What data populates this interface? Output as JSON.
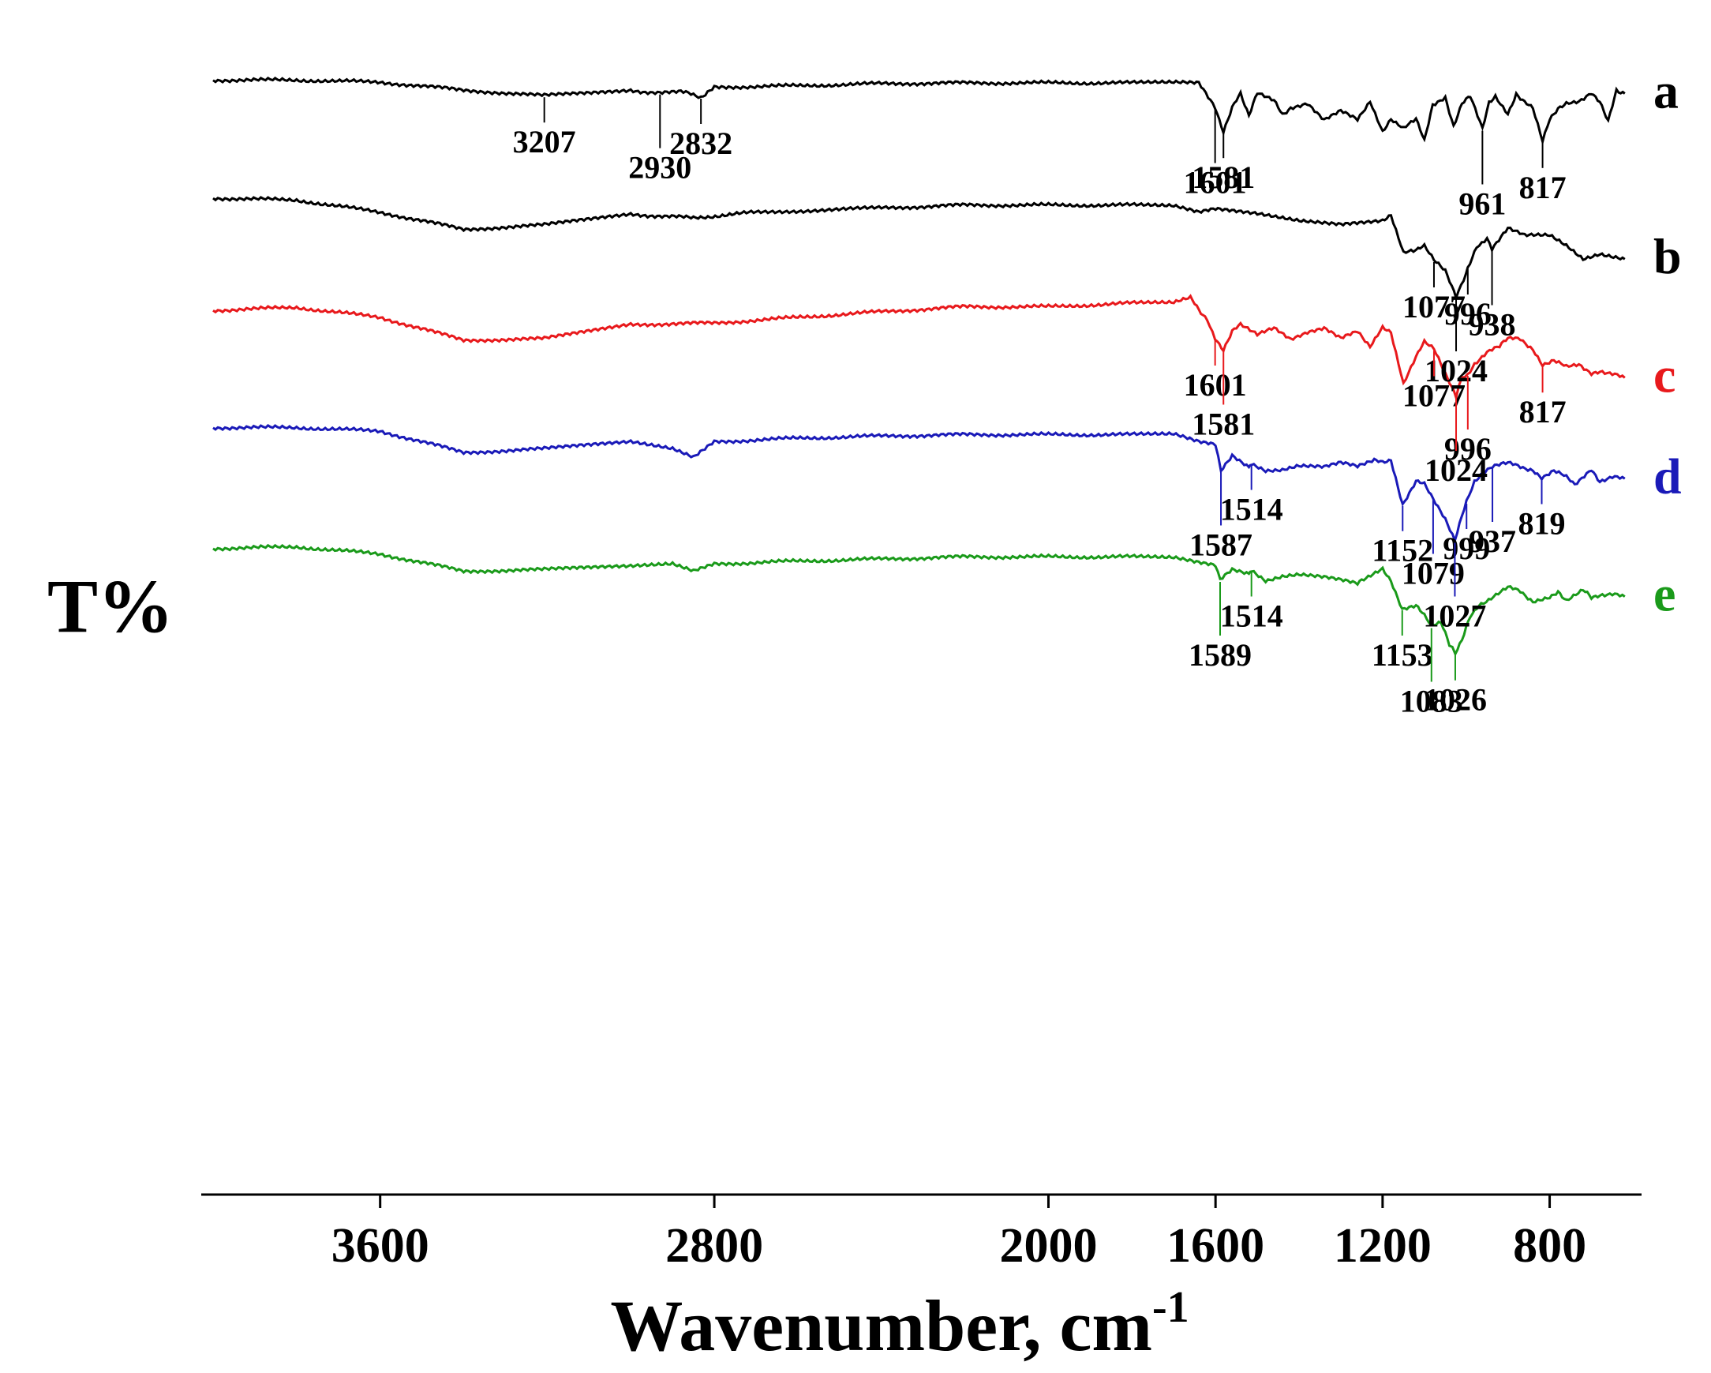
{
  "chart_data": {
    "type": "line",
    "title": "",
    "xlabel": "Wavenumber, cm",
    "xlabel_superscript": "-1",
    "ylabel": "T%",
    "xlim": [
      4000,
      580
    ],
    "x_reversed": true,
    "x_ticks": [
      3600,
      2800,
      2000,
      1600,
      1200,
      800
    ],
    "x_tick_labels": [
      "3600",
      "2800",
      "2000",
      "1600",
      "1200",
      "800"
    ],
    "grid": false,
    "legend": "curve letters at right end of each trace",
    "colors": {
      "a": "#000000",
      "b": "#000000",
      "c": "#e8191c",
      "d": "#1a1ab8",
      "e": "#1a9a1a",
      "axis": "#000000"
    },
    "series": [
      {
        "name": "a",
        "color": "#000000",
        "baseline": 0.08,
        "points": [
          [
            4000,
            0.06
          ],
          [
            3800,
            0.06
          ],
          [
            3600,
            0.09
          ],
          [
            3400,
            0.2
          ],
          [
            3207,
            0.28
          ],
          [
            3100,
            0.24
          ],
          [
            3000,
            0.21
          ],
          [
            2930,
            0.24
          ],
          [
            2880,
            0.22
          ],
          [
            2832,
            0.3
          ],
          [
            2800,
            0.16
          ],
          [
            2600,
            0.14
          ],
          [
            2400,
            0.11
          ],
          [
            2200,
            0.1
          ],
          [
            2000,
            0.1
          ],
          [
            1800,
            0.1
          ],
          [
            1700,
            0.1
          ],
          [
            1640,
            0.1
          ],
          [
            1601,
            0.45
          ],
          [
            1581,
            0.78
          ],
          [
            1560,
            0.45
          ],
          [
            1540,
            0.25
          ],
          [
            1520,
            0.55
          ],
          [
            1500,
            0.25
          ],
          [
            1460,
            0.35
          ],
          [
            1440,
            0.55
          ],
          [
            1420,
            0.45
          ],
          [
            1380,
            0.38
          ],
          [
            1340,
            0.62
          ],
          [
            1300,
            0.5
          ],
          [
            1260,
            0.62
          ],
          [
            1230,
            0.35
          ],
          [
            1200,
            0.8
          ],
          [
            1180,
            0.6
          ],
          [
            1150,
            0.75
          ],
          [
            1120,
            0.6
          ],
          [
            1100,
            0.92
          ],
          [
            1080,
            0.4
          ],
          [
            1050,
            0.32
          ],
          [
            1030,
            0.7
          ],
          [
            1010,
            0.4
          ],
          [
            990,
            0.28
          ],
          [
            961,
            0.75
          ],
          [
            945,
            0.38
          ],
          [
            930,
            0.28
          ],
          [
            900,
            0.55
          ],
          [
            880,
            0.25
          ],
          [
            860,
            0.38
          ],
          [
            840,
            0.45
          ],
          [
            817,
            0.92
          ],
          [
            800,
            0.62
          ],
          [
            780,
            0.45
          ],
          [
            760,
            0.4
          ],
          [
            730,
            0.35
          ],
          [
            700,
            0.25
          ],
          [
            680,
            0.35
          ],
          [
            660,
            0.65
          ],
          [
            640,
            0.2
          ],
          [
            620,
            0.25
          ]
        ]
      },
      {
        "name": "b",
        "color": "#000000",
        "baseline": 0.42,
        "points": [
          [
            4000,
            0.02
          ],
          [
            3800,
            0.05
          ],
          [
            3600,
            0.22
          ],
          [
            3400,
            0.46
          ],
          [
            3207,
            0.4
          ],
          [
            3000,
            0.25
          ],
          [
            2850,
            0.3
          ],
          [
            2700,
            0.22
          ],
          [
            2400,
            0.16
          ],
          [
            2200,
            0.12
          ],
          [
            2000,
            0.12
          ],
          [
            1800,
            0.12
          ],
          [
            1700,
            0.14
          ],
          [
            1640,
            0.22
          ],
          [
            1600,
            0.18
          ],
          [
            1500,
            0.25
          ],
          [
            1400,
            0.35
          ],
          [
            1300,
            0.4
          ],
          [
            1200,
            0.35
          ],
          [
            1180,
            0.25
          ],
          [
            1150,
            0.8
          ],
          [
            1120,
            0.75
          ],
          [
            1100,
            0.7
          ],
          [
            1077,
            0.9
          ],
          [
            1050,
            1.05
          ],
          [
            1024,
            1.4
          ],
          [
            1000,
            1.1
          ],
          [
            996,
            1.0
          ],
          [
            975,
            0.7
          ],
          [
            950,
            0.6
          ],
          [
            938,
            0.75
          ],
          [
            900,
            0.45
          ],
          [
            860,
            0.55
          ],
          [
            800,
            0.55
          ],
          [
            760,
            0.7
          ],
          [
            720,
            0.88
          ],
          [
            680,
            0.8
          ],
          [
            620,
            0.88
          ]
        ]
      },
      {
        "name": "c",
        "color": "#e8191c",
        "baseline": 0.74,
        "points": [
          [
            4000,
            0.0
          ],
          [
            3800,
            -0.04
          ],
          [
            3600,
            0.1
          ],
          [
            3400,
            0.42
          ],
          [
            3207,
            0.4
          ],
          [
            3000,
            0.2
          ],
          [
            2800,
            0.18
          ],
          [
            2600,
            0.1
          ],
          [
            2400,
            0.02
          ],
          [
            2200,
            -0.05
          ],
          [
            2000,
            -0.05
          ],
          [
            1800,
            -0.1
          ],
          [
            1700,
            -0.1
          ],
          [
            1660,
            -0.18
          ],
          [
            1640,
            0.0
          ],
          [
            1620,
            0.12
          ],
          [
            1601,
            0.4
          ],
          [
            1581,
            0.55
          ],
          [
            1560,
            0.3
          ],
          [
            1540,
            0.2
          ],
          [
            1500,
            0.35
          ],
          [
            1460,
            0.25
          ],
          [
            1420,
            0.4
          ],
          [
            1380,
            0.3
          ],
          [
            1340,
            0.25
          ],
          [
            1300,
            0.4
          ],
          [
            1260,
            0.3
          ],
          [
            1230,
            0.5
          ],
          [
            1200,
            0.25
          ],
          [
            1180,
            0.3
          ],
          [
            1150,
            1.05
          ],
          [
            1120,
            0.65
          ],
          [
            1100,
            0.45
          ],
          [
            1077,
            0.55
          ],
          [
            1050,
            0.9
          ],
          [
            1024,
            1.2
          ],
          [
            1010,
            0.95
          ],
          [
            996,
            0.9
          ],
          [
            980,
            0.75
          ],
          [
            950,
            0.6
          ],
          [
            920,
            0.5
          ],
          [
            900,
            0.4
          ],
          [
            870,
            0.4
          ],
          [
            840,
            0.55
          ],
          [
            817,
            0.78
          ],
          [
            790,
            0.7
          ],
          [
            760,
            0.8
          ],
          [
            730,
            0.75
          ],
          [
            700,
            0.9
          ],
          [
            680,
            0.85
          ],
          [
            650,
            0.9
          ],
          [
            620,
            0.95
          ]
        ]
      },
      {
        "name": "d",
        "color": "#1a1ab8",
        "baseline": 1.07,
        "points": [
          [
            4000,
            0.0
          ],
          [
            3800,
            0.0
          ],
          [
            3600,
            0.05
          ],
          [
            3400,
            0.35
          ],
          [
            3207,
            0.3
          ],
          [
            3000,
            0.2
          ],
          [
            2900,
            0.3
          ],
          [
            2850,
            0.42
          ],
          [
            2800,
            0.2
          ],
          [
            2600,
            0.15
          ],
          [
            2400,
            0.12
          ],
          [
            2200,
            0.1
          ],
          [
            2000,
            0.1
          ],
          [
            1800,
            0.1
          ],
          [
            1700,
            0.1
          ],
          [
            1640,
            0.2
          ],
          [
            1600,
            0.25
          ],
          [
            1587,
            0.6
          ],
          [
            1560,
            0.4
          ],
          [
            1520,
            0.55
          ],
          [
            1514,
            0.5
          ],
          [
            1480,
            0.6
          ],
          [
            1440,
            0.6
          ],
          [
            1400,
            0.55
          ],
          [
            1340,
            0.55
          ],
          [
            1300,
            0.5
          ],
          [
            1260,
            0.55
          ],
          [
            1220,
            0.45
          ],
          [
            1200,
            0.5
          ],
          [
            1180,
            0.45
          ],
          [
            1152,
            1.08
          ],
          [
            1120,
            0.75
          ],
          [
            1100,
            0.8
          ],
          [
            1079,
            1.0
          ],
          [
            1050,
            1.3
          ],
          [
            1027,
            1.6
          ],
          [
            1010,
            1.25
          ],
          [
            999,
            1.05
          ],
          [
            980,
            0.75
          ],
          [
            960,
            0.65
          ],
          [
            937,
            0.55
          ],
          [
            900,
            0.5
          ],
          [
            870,
            0.55
          ],
          [
            840,
            0.6
          ],
          [
            819,
            0.7
          ],
          [
            790,
            0.6
          ],
          [
            760,
            0.7
          ],
          [
            740,
            0.8
          ],
          [
            700,
            0.6
          ],
          [
            680,
            0.75
          ],
          [
            650,
            0.7
          ],
          [
            620,
            0.72
          ]
        ]
      },
      {
        "name": "e",
        "color": "#1a9a1a",
        "baseline": 1.41,
        "points": [
          [
            4000,
            0.0
          ],
          [
            3800,
            -0.02
          ],
          [
            3600,
            0.08
          ],
          [
            3400,
            0.32
          ],
          [
            3207,
            0.3
          ],
          [
            3000,
            0.25
          ],
          [
            2900,
            0.22
          ],
          [
            2850,
            0.32
          ],
          [
            2800,
            0.22
          ],
          [
            2600,
            0.18
          ],
          [
            2400,
            0.15
          ],
          [
            2200,
            0.12
          ],
          [
            2000,
            0.12
          ],
          [
            1800,
            0.12
          ],
          [
            1700,
            0.14
          ],
          [
            1640,
            0.2
          ],
          [
            1600,
            0.25
          ],
          [
            1589,
            0.45
          ],
          [
            1560,
            0.3
          ],
          [
            1520,
            0.35
          ],
          [
            1514,
            0.3
          ],
          [
            1480,
            0.45
          ],
          [
            1440,
            0.4
          ],
          [
            1400,
            0.38
          ],
          [
            1340,
            0.4
          ],
          [
            1300,
            0.45
          ],
          [
            1260,
            0.5
          ],
          [
            1240,
            0.42
          ],
          [
            1200,
            0.3
          ],
          [
            1180,
            0.45
          ],
          [
            1153,
            0.85
          ],
          [
            1120,
            0.8
          ],
          [
            1100,
            0.95
          ],
          [
            1083,
            1.1
          ],
          [
            1060,
            1.05
          ],
          [
            1040,
            1.35
          ],
          [
            1026,
            1.48
          ],
          [
            1010,
            1.3
          ],
          [
            990,
            0.95
          ],
          [
            970,
            0.8
          ],
          [
            940,
            0.7
          ],
          [
            900,
            0.55
          ],
          [
            870,
            0.6
          ],
          [
            840,
            0.75
          ],
          [
            800,
            0.7
          ],
          [
            780,
            0.6
          ],
          [
            760,
            0.75
          ],
          [
            720,
            0.58
          ],
          [
            700,
            0.7
          ],
          [
            680,
            0.65
          ],
          [
            650,
            0.65
          ],
          [
            620,
            0.68
          ]
        ]
      }
    ],
    "annotations": [
      {
        "series": "a",
        "text": "3207",
        "x": 3207
      },
      {
        "series": "a",
        "text": "2930",
        "x": 2930
      },
      {
        "series": "a",
        "text": "2832",
        "x": 2832
      },
      {
        "series": "a",
        "text": "1601",
        "x": 1601
      },
      {
        "series": "a",
        "text": "1581",
        "x": 1581
      },
      {
        "series": "a",
        "text": "961",
        "x": 961
      },
      {
        "series": "a",
        "text": "817",
        "x": 817
      },
      {
        "series": "b",
        "text": "1077",
        "x": 1077
      },
      {
        "series": "b",
        "text": "938",
        "x": 938
      },
      {
        "series": "b",
        "text": "996",
        "x": 996
      },
      {
        "series": "b",
        "text": "1024",
        "x": 1024
      },
      {
        "series": "c",
        "text": "1601",
        "x": 1601
      },
      {
        "series": "c",
        "text": "1581",
        "x": 1581
      },
      {
        "series": "c",
        "text": "1077",
        "x": 1077
      },
      {
        "series": "c",
        "text": "996",
        "x": 996
      },
      {
        "series": "c",
        "text": "817",
        "x": 817
      },
      {
        "series": "c",
        "text": "1024",
        "x": 1024
      },
      {
        "series": "d",
        "text": "1514",
        "x": 1514
      },
      {
        "series": "d",
        "text": "1587",
        "x": 1587
      },
      {
        "series": "d",
        "text": "1152",
        "x": 1152
      },
      {
        "series": "d",
        "text": "937",
        "x": 937
      },
      {
        "series": "d",
        "text": "819",
        "x": 819
      },
      {
        "series": "d",
        "text": "1079",
        "x": 1079
      },
      {
        "series": "d",
        "text": "999",
        "x": 999
      },
      {
        "series": "d",
        "text": "1027",
        "x": 1027
      },
      {
        "series": "e",
        "text": "1514",
        "x": 1514
      },
      {
        "series": "e",
        "text": "1589",
        "x": 1589
      },
      {
        "series": "e",
        "text": "1153",
        "x": 1153
      },
      {
        "series": "e",
        "text": "1083",
        "x": 1083
      },
      {
        "series": "e",
        "text": "1026",
        "x": 1026
      }
    ]
  }
}
